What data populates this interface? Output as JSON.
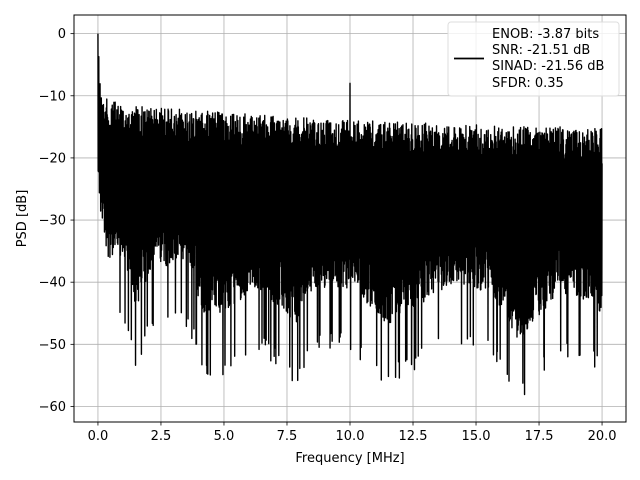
{
  "chart_data": {
    "type": "line",
    "title": "",
    "xlabel": "Frequency [MHz]",
    "ylabel": "PSD [dB]",
    "xlim": [
      -0.95,
      20.95
    ],
    "ylim": [
      -62.5,
      3.0
    ],
    "xticks": [
      0.0,
      2.5,
      5.0,
      7.5,
      10.0,
      12.5,
      15.0,
      17.5,
      20.0
    ],
    "xtick_labels": [
      "0.0",
      "2.5",
      "5.0",
      "7.5",
      "10.0",
      "12.5",
      "15.0",
      "17.5",
      "20.0"
    ],
    "yticks": [
      0,
      -10,
      -20,
      -30,
      -40,
      -50,
      -60
    ],
    "ytick_labels": [
      "0",
      "−10",
      "−20",
      "−30",
      "−40",
      "−50",
      "−60"
    ],
    "grid": true,
    "legend_position": "top-right",
    "series": [
      {
        "color": "#000000",
        "legend_lines": [
          "ENOB: -3.87 bits",
          "SNR: -21.51 dB",
          "SINAD: -21.56 dB",
          "SFDR: 0.35"
        ],
        "x_range": [
          0.0,
          20.0
        ],
        "spur": {
          "x": 10.0,
          "y": -8
        },
        "peaks": [
          {
            "x": 0.0,
            "y": 0
          },
          {
            "x": 0.05,
            "y": -4
          },
          {
            "x": 0.1,
            "y": -8
          },
          {
            "x": 0.2,
            "y": -10
          },
          {
            "x": 0.5,
            "y": -11
          },
          {
            "x": 1.0,
            "y": -11
          },
          {
            "x": 2.0,
            "y": -12
          },
          {
            "x": 3.0,
            "y": -12
          },
          {
            "x": 4.0,
            "y": -12.5
          },
          {
            "x": 5.0,
            "y": -12.5
          },
          {
            "x": 6.0,
            "y": -13
          },
          {
            "x": 8.0,
            "y": -13.5
          },
          {
            "x": 10.5,
            "y": -14
          },
          {
            "x": 14.0,
            "y": -14.5
          },
          {
            "x": 17.0,
            "y": -15
          },
          {
            "x": 20.0,
            "y": -15
          }
        ],
        "troughs": [
          {
            "x": 0.0,
            "y": -37
          },
          {
            "x": 0.4,
            "y": -46
          },
          {
            "x": 1.1,
            "y": -47
          },
          {
            "x": 1.5,
            "y": -54.5
          },
          {
            "x": 2.2,
            "y": -47
          },
          {
            "x": 3.6,
            "y": -48
          },
          {
            "x": 4.2,
            "y": -55
          },
          {
            "x": 5.0,
            "y": -55
          },
          {
            "x": 5.9,
            "y": -52
          },
          {
            "x": 6.4,
            "y": -51
          },
          {
            "x": 7.9,
            "y": -57
          },
          {
            "x": 8.5,
            "y": -51
          },
          {
            "x": 10.0,
            "y": -51
          },
          {
            "x": 10.8,
            "y": -54
          },
          {
            "x": 11.4,
            "y": -57
          },
          {
            "x": 14.2,
            "y": -50
          },
          {
            "x": 15.7,
            "y": -52
          },
          {
            "x": 16.7,
            "y": -59.5
          },
          {
            "x": 18.3,
            "y": -52
          },
          {
            "x": 19.6,
            "y": -53
          },
          {
            "x": 20.0,
            "y": -56
          }
        ]
      }
    ]
  }
}
